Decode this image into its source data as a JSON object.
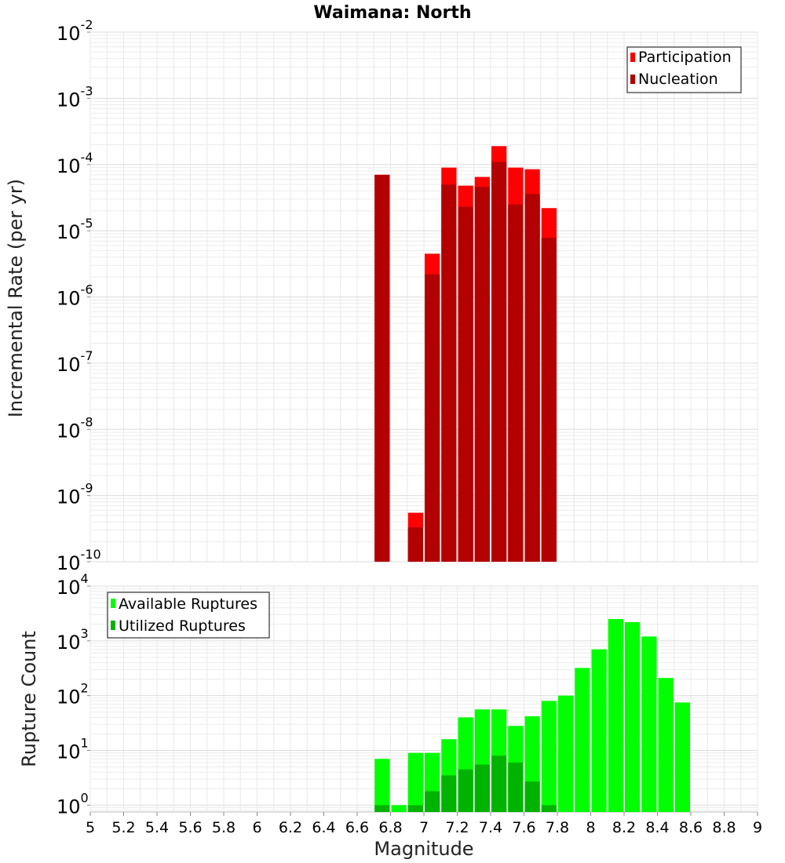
{
  "chart_data": [
    {
      "type": "bar",
      "title": "Waimana: North",
      "xlabel": "",
      "ylabel": "Incremental Rate (per yr)",
      "xlim": [
        5,
        9
      ],
      "ylim": [
        1e-10,
        0.01
      ],
      "yscale": "log",
      "bin_width": 0.1,
      "grid": true,
      "legend_position": "top-right",
      "y_ticks": [
        {
          "base": "10",
          "exp": "-10"
        },
        {
          "base": "10",
          "exp": "-9"
        },
        {
          "base": "10",
          "exp": "-8"
        },
        {
          "base": "10",
          "exp": "-7"
        },
        {
          "base": "10",
          "exp": "-6"
        },
        {
          "base": "10",
          "exp": "-5"
        },
        {
          "base": "10",
          "exp": "-4"
        },
        {
          "base": "10",
          "exp": "-3"
        },
        {
          "base": "10",
          "exp": "-2"
        }
      ],
      "series": [
        {
          "name": "Participation",
          "color": "#ff0000",
          "x": [
            6.75,
            6.95,
            7.05,
            7.15,
            7.25,
            7.35,
            7.45,
            7.55,
            7.65,
            7.75
          ],
          "values": [
            7e-05,
            5.5e-10,
            4.5e-06,
            9e-05,
            4.8e-05,
            6.5e-05,
            0.00019,
            9e-05,
            8.5e-05,
            2.2e-05
          ]
        },
        {
          "name": "Nucleation",
          "color": "#b30000",
          "x": [
            6.75,
            6.95,
            7.05,
            7.15,
            7.25,
            7.35,
            7.45,
            7.55,
            7.65,
            7.75
          ],
          "values": [
            7e-05,
            3.3e-10,
            2.2e-06,
            5e-05,
            2.3e-05,
            4.6e-05,
            0.00011,
            2.5e-05,
            3.6e-05,
            7.8e-06
          ]
        }
      ]
    },
    {
      "type": "bar",
      "title": "",
      "xlabel": "Magnitude",
      "ylabel": "Rupture Count",
      "xlim": [
        5,
        9
      ],
      "ylim": [
        0.75,
        10000
      ],
      "yscale": "log",
      "bin_width": 0.1,
      "grid": true,
      "legend_position": "top-left",
      "x_ticks": [
        "5",
        "5.2",
        "5.4",
        "5.6",
        "5.8",
        "6",
        "6.2",
        "6.4",
        "6.6",
        "6.8",
        "7",
        "7.2",
        "7.4",
        "7.6",
        "7.8",
        "8",
        "8.2",
        "8.4",
        "8.6",
        "8.8",
        "9"
      ],
      "y_ticks": [
        {
          "base": "10",
          "exp": "0"
        },
        {
          "base": "10",
          "exp": "1"
        },
        {
          "base": "10",
          "exp": "2"
        },
        {
          "base": "10",
          "exp": "3"
        },
        {
          "base": "10",
          "exp": "4"
        }
      ],
      "series": [
        {
          "name": "Available Ruptures",
          "color": "#00ff00",
          "x": [
            6.75,
            6.85,
            6.95,
            7.05,
            7.15,
            7.25,
            7.35,
            7.45,
            7.55,
            7.65,
            7.75,
            7.85,
            7.95,
            8.05,
            8.15,
            8.25,
            8.35,
            8.45,
            8.55
          ],
          "values": [
            7,
            1,
            9,
            9,
            16,
            40,
            56,
            56,
            28,
            42,
            80,
            100,
            320,
            700,
            2500,
            2200,
            1200,
            210,
            75
          ]
        },
        {
          "name": "Utilized Ruptures",
          "color": "#00b300",
          "x": [
            6.75,
            6.95,
            7.05,
            7.15,
            7.25,
            7.35,
            7.45,
            7.55,
            7.65,
            7.75
          ],
          "values": [
            1,
            1,
            1.8,
            3.5,
            4.5,
            5.5,
            8,
            6,
            2.7,
            1
          ]
        }
      ]
    }
  ]
}
